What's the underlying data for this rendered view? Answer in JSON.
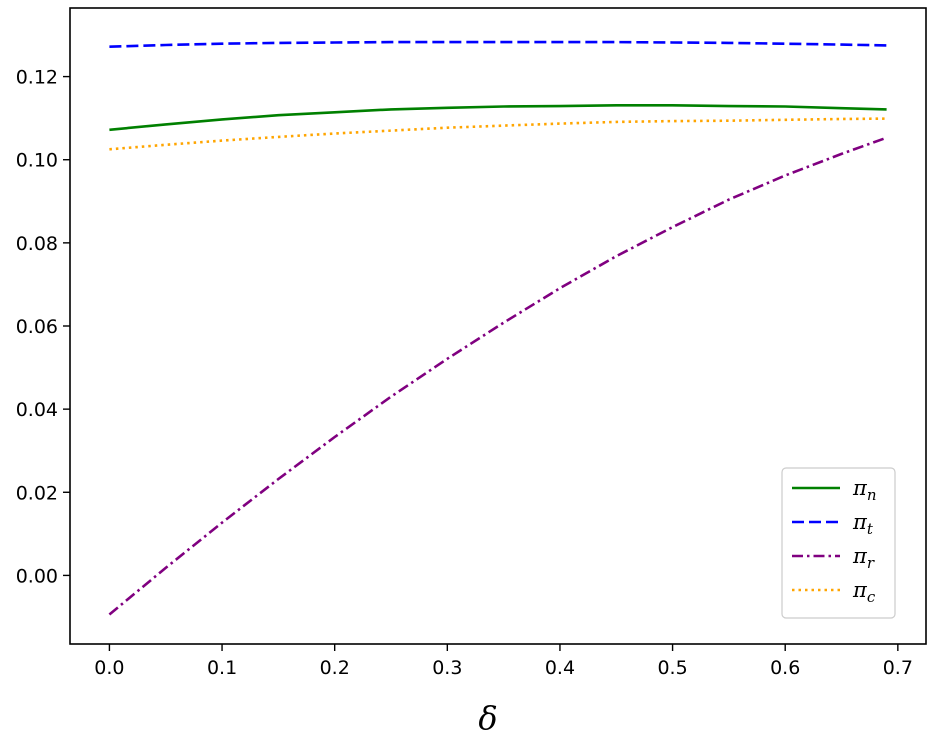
{
  "chart_data": {
    "type": "line",
    "title": "",
    "xlabel": "δ",
    "ylabel": "",
    "xlim": [
      -0.035,
      0.725
    ],
    "ylim": [
      -0.0165,
      0.1365
    ],
    "x_ticks": [
      "0.0",
      "0.1",
      "0.2",
      "0.3",
      "0.4",
      "0.5",
      "0.6",
      "0.7"
    ],
    "x_tick_values": [
      0.0,
      0.1,
      0.2,
      0.3,
      0.4,
      0.5,
      0.6,
      0.7
    ],
    "y_ticks": [
      "0.00",
      "0.02",
      "0.04",
      "0.06",
      "0.08",
      "0.10",
      "0.12"
    ],
    "y_tick_values": [
      0.0,
      0.02,
      0.04,
      0.06,
      0.08,
      0.1,
      0.12
    ],
    "grid": false,
    "legend_position": "lower-right",
    "x": [
      0.0,
      0.05,
      0.1,
      0.15,
      0.2,
      0.25,
      0.3,
      0.35,
      0.4,
      0.45,
      0.5,
      0.55,
      0.6,
      0.65,
      0.69
    ],
    "series": [
      {
        "name": "π",
        "subscript": "n",
        "color": "#008000",
        "dash": "solid",
        "values": [
          0.1072,
          0.1085,
          0.1097,
          0.1107,
          0.1114,
          0.1121,
          0.1125,
          0.1128,
          0.1129,
          0.1131,
          0.1131,
          0.1129,
          0.1128,
          0.1124,
          0.1121
        ]
      },
      {
        "name": "π",
        "subscript": "t",
        "color": "#0000ff",
        "dash": "dashed",
        "values": [
          0.1272,
          0.1276,
          0.1279,
          0.1281,
          0.1282,
          0.1283,
          0.1283,
          0.1283,
          0.1283,
          0.1283,
          0.1282,
          0.1281,
          0.1279,
          0.1277,
          0.1275
        ]
      },
      {
        "name": "π",
        "subscript": "r",
        "color": "#800080",
        "dash": "dashdot",
        "values": [
          -0.0094,
          0.0018,
          0.0127,
          0.0232,
          0.0333,
          0.043,
          0.0521,
          0.0608,
          0.0691,
          0.0768,
          0.0838,
          0.0904,
          0.0962,
          0.1014,
          0.1053
        ]
      },
      {
        "name": "π",
        "subscript": "c",
        "color": "#ffa500",
        "dash": "dotted",
        "values": [
          0.1025,
          0.1036,
          0.1046,
          0.1055,
          0.1063,
          0.107,
          0.1077,
          0.1082,
          0.1087,
          0.1091,
          0.1093,
          0.1094,
          0.1096,
          0.1098,
          0.1099
        ]
      }
    ]
  }
}
